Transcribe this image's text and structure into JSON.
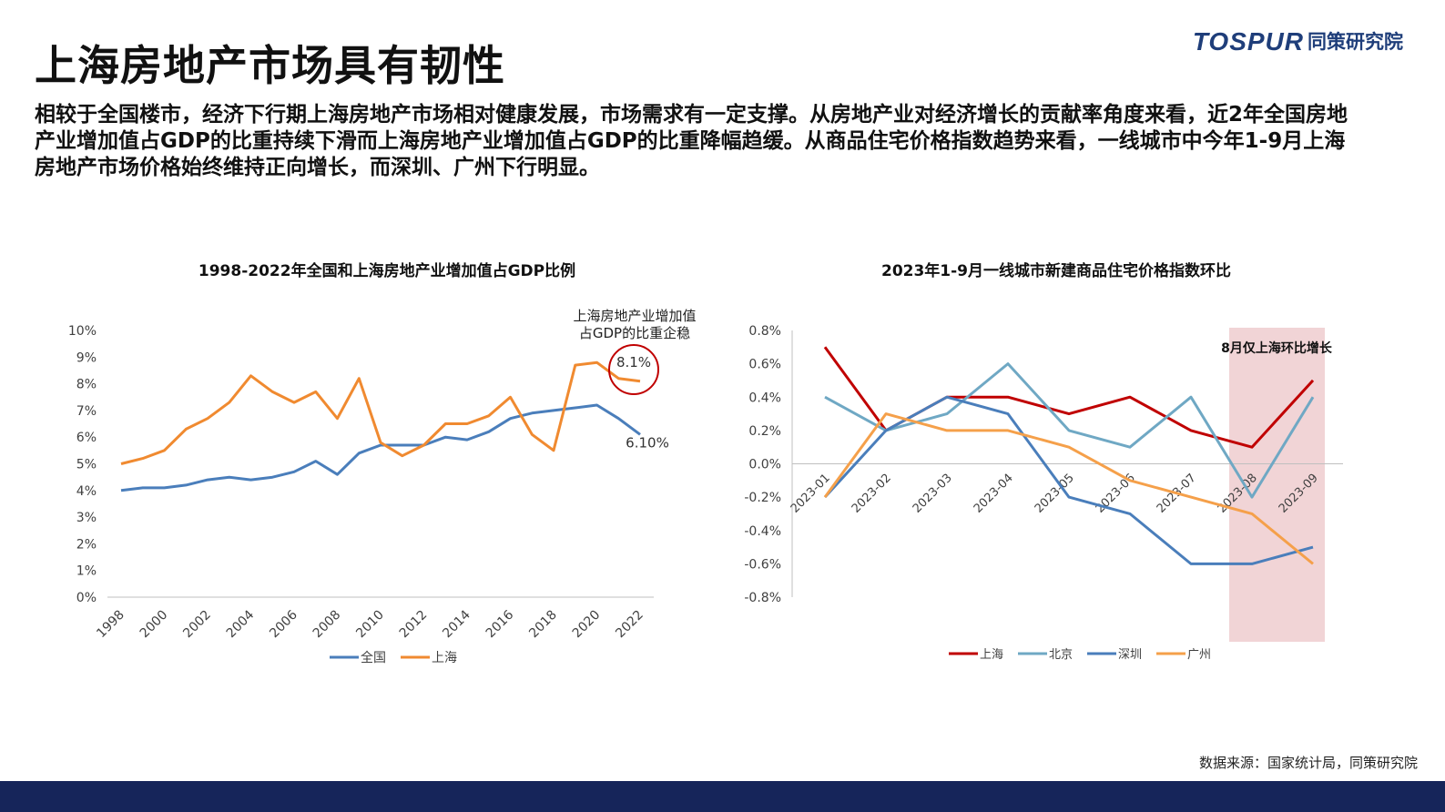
{
  "header": {
    "title": "上海房地产市场具有韧性",
    "logo_en": "TOSPUR",
    "logo_cn": "同策研究院",
    "summary": "相较于全国楼市，经济下行期上海房地产市场相对健康发展，市场需求有一定支撑。从房地产业对经济增长的贡献率角度来看，近2年全国房地产业增加值占GDP的比重持续下滑而上海房地产业增加值占GDP的比重降幅趋缓。从商品住宅价格指数趋势来看，一线城市中今年1-9月上海房地产市场价格始终维持正向增长，而深圳、广州下行明显。"
  },
  "source": "数据来源：国家统计局，同策研究院",
  "colors": {
    "brand": "#1f3e7a",
    "footer": "#16255a"
  },
  "chart_data": [
    {
      "type": "line",
      "title": "1998-2022年全国和上海房地产业增加值占GDP比例",
      "x": [
        1998,
        1999,
        2000,
        2001,
        2002,
        2003,
        2004,
        2005,
        2006,
        2007,
        2008,
        2009,
        2010,
        2011,
        2012,
        2013,
        2014,
        2015,
        2016,
        2017,
        2018,
        2019,
        2020,
        2021,
        2022
      ],
      "x_tick_labels": [
        "1998",
        "2000",
        "2002",
        "2004",
        "2006",
        "2008",
        "2010",
        "2012",
        "2014",
        "2016",
        "2018",
        "2020",
        "2022"
      ],
      "y_ticks": [
        "0%",
        "1%",
        "2%",
        "3%",
        "4%",
        "5%",
        "6%",
        "7%",
        "8%",
        "9%",
        "10%"
      ],
      "ylim": [
        0,
        10
      ],
      "series": [
        {
          "name": "全国",
          "color": "#4a7ebb",
          "values": [
            4.0,
            4.1,
            4.1,
            4.2,
            4.4,
            4.5,
            4.4,
            4.5,
            4.7,
            5.1,
            4.6,
            5.4,
            5.7,
            5.7,
            5.7,
            6.0,
            5.9,
            6.2,
            6.7,
            6.9,
            7.0,
            7.1,
            7.2,
            6.7,
            6.1
          ]
        },
        {
          "name": "上海",
          "color": "#f08a30",
          "values": [
            5.0,
            5.2,
            5.5,
            6.3,
            6.7,
            7.3,
            8.3,
            7.7,
            7.3,
            7.7,
            6.7,
            8.2,
            5.8,
            5.3,
            5.7,
            6.5,
            6.5,
            6.8,
            7.5,
            6.1,
            5.5,
            8.7,
            8.8,
            8.2,
            8.1
          ]
        }
      ],
      "data_labels": {
        "shanghai_end": "8.1%",
        "national_end": "6.10%"
      },
      "annotation": {
        "line1": "上海房地产业增加值",
        "line2": "占GDP的比重企稳"
      },
      "legend": "bottom"
    },
    {
      "type": "line",
      "title": "2023年1-9月一线城市新建商品住宅价格指数环比",
      "categories": [
        "2023-01",
        "2023-02",
        "2023-03",
        "2023-04",
        "2023-05",
        "2023-06",
        "2023-07",
        "2023-08",
        "2023-09"
      ],
      "y_ticks": [
        "0.8%",
        "0.6%",
        "0.4%",
        "0.2%",
        "0.0%",
        "-0.2%",
        "-0.4%",
        "-0.6%",
        "-0.8%"
      ],
      "ylim": [
        -0.8,
        0.8
      ],
      "series": [
        {
          "name": "上海",
          "color": "#c00000",
          "values": [
            0.7,
            0.2,
            0.4,
            0.4,
            0.3,
            0.4,
            0.2,
            0.1,
            0.5
          ]
        },
        {
          "name": "北京",
          "color": "#6fa8c4",
          "values": [
            0.4,
            0.2,
            0.3,
            0.6,
            0.2,
            0.1,
            0.4,
            -0.2,
            0.4
          ]
        },
        {
          "name": "深圳",
          "color": "#4a7ebb",
          "values": [
            -0.2,
            0.2,
            0.4,
            0.3,
            -0.2,
            -0.3,
            -0.6,
            -0.6,
            -0.5
          ]
        },
        {
          "name": "广州",
          "color": "#f5a04a",
          "values": [
            -0.2,
            0.3,
            0.2,
            0.2,
            0.1,
            -0.1,
            -0.2,
            -0.3,
            -0.6
          ]
        }
      ],
      "highlight": {
        "month": "2023-08",
        "text": "8月仅上海环比增长",
        "color": "#ecc5c8"
      },
      "legend": "bottom"
    }
  ]
}
